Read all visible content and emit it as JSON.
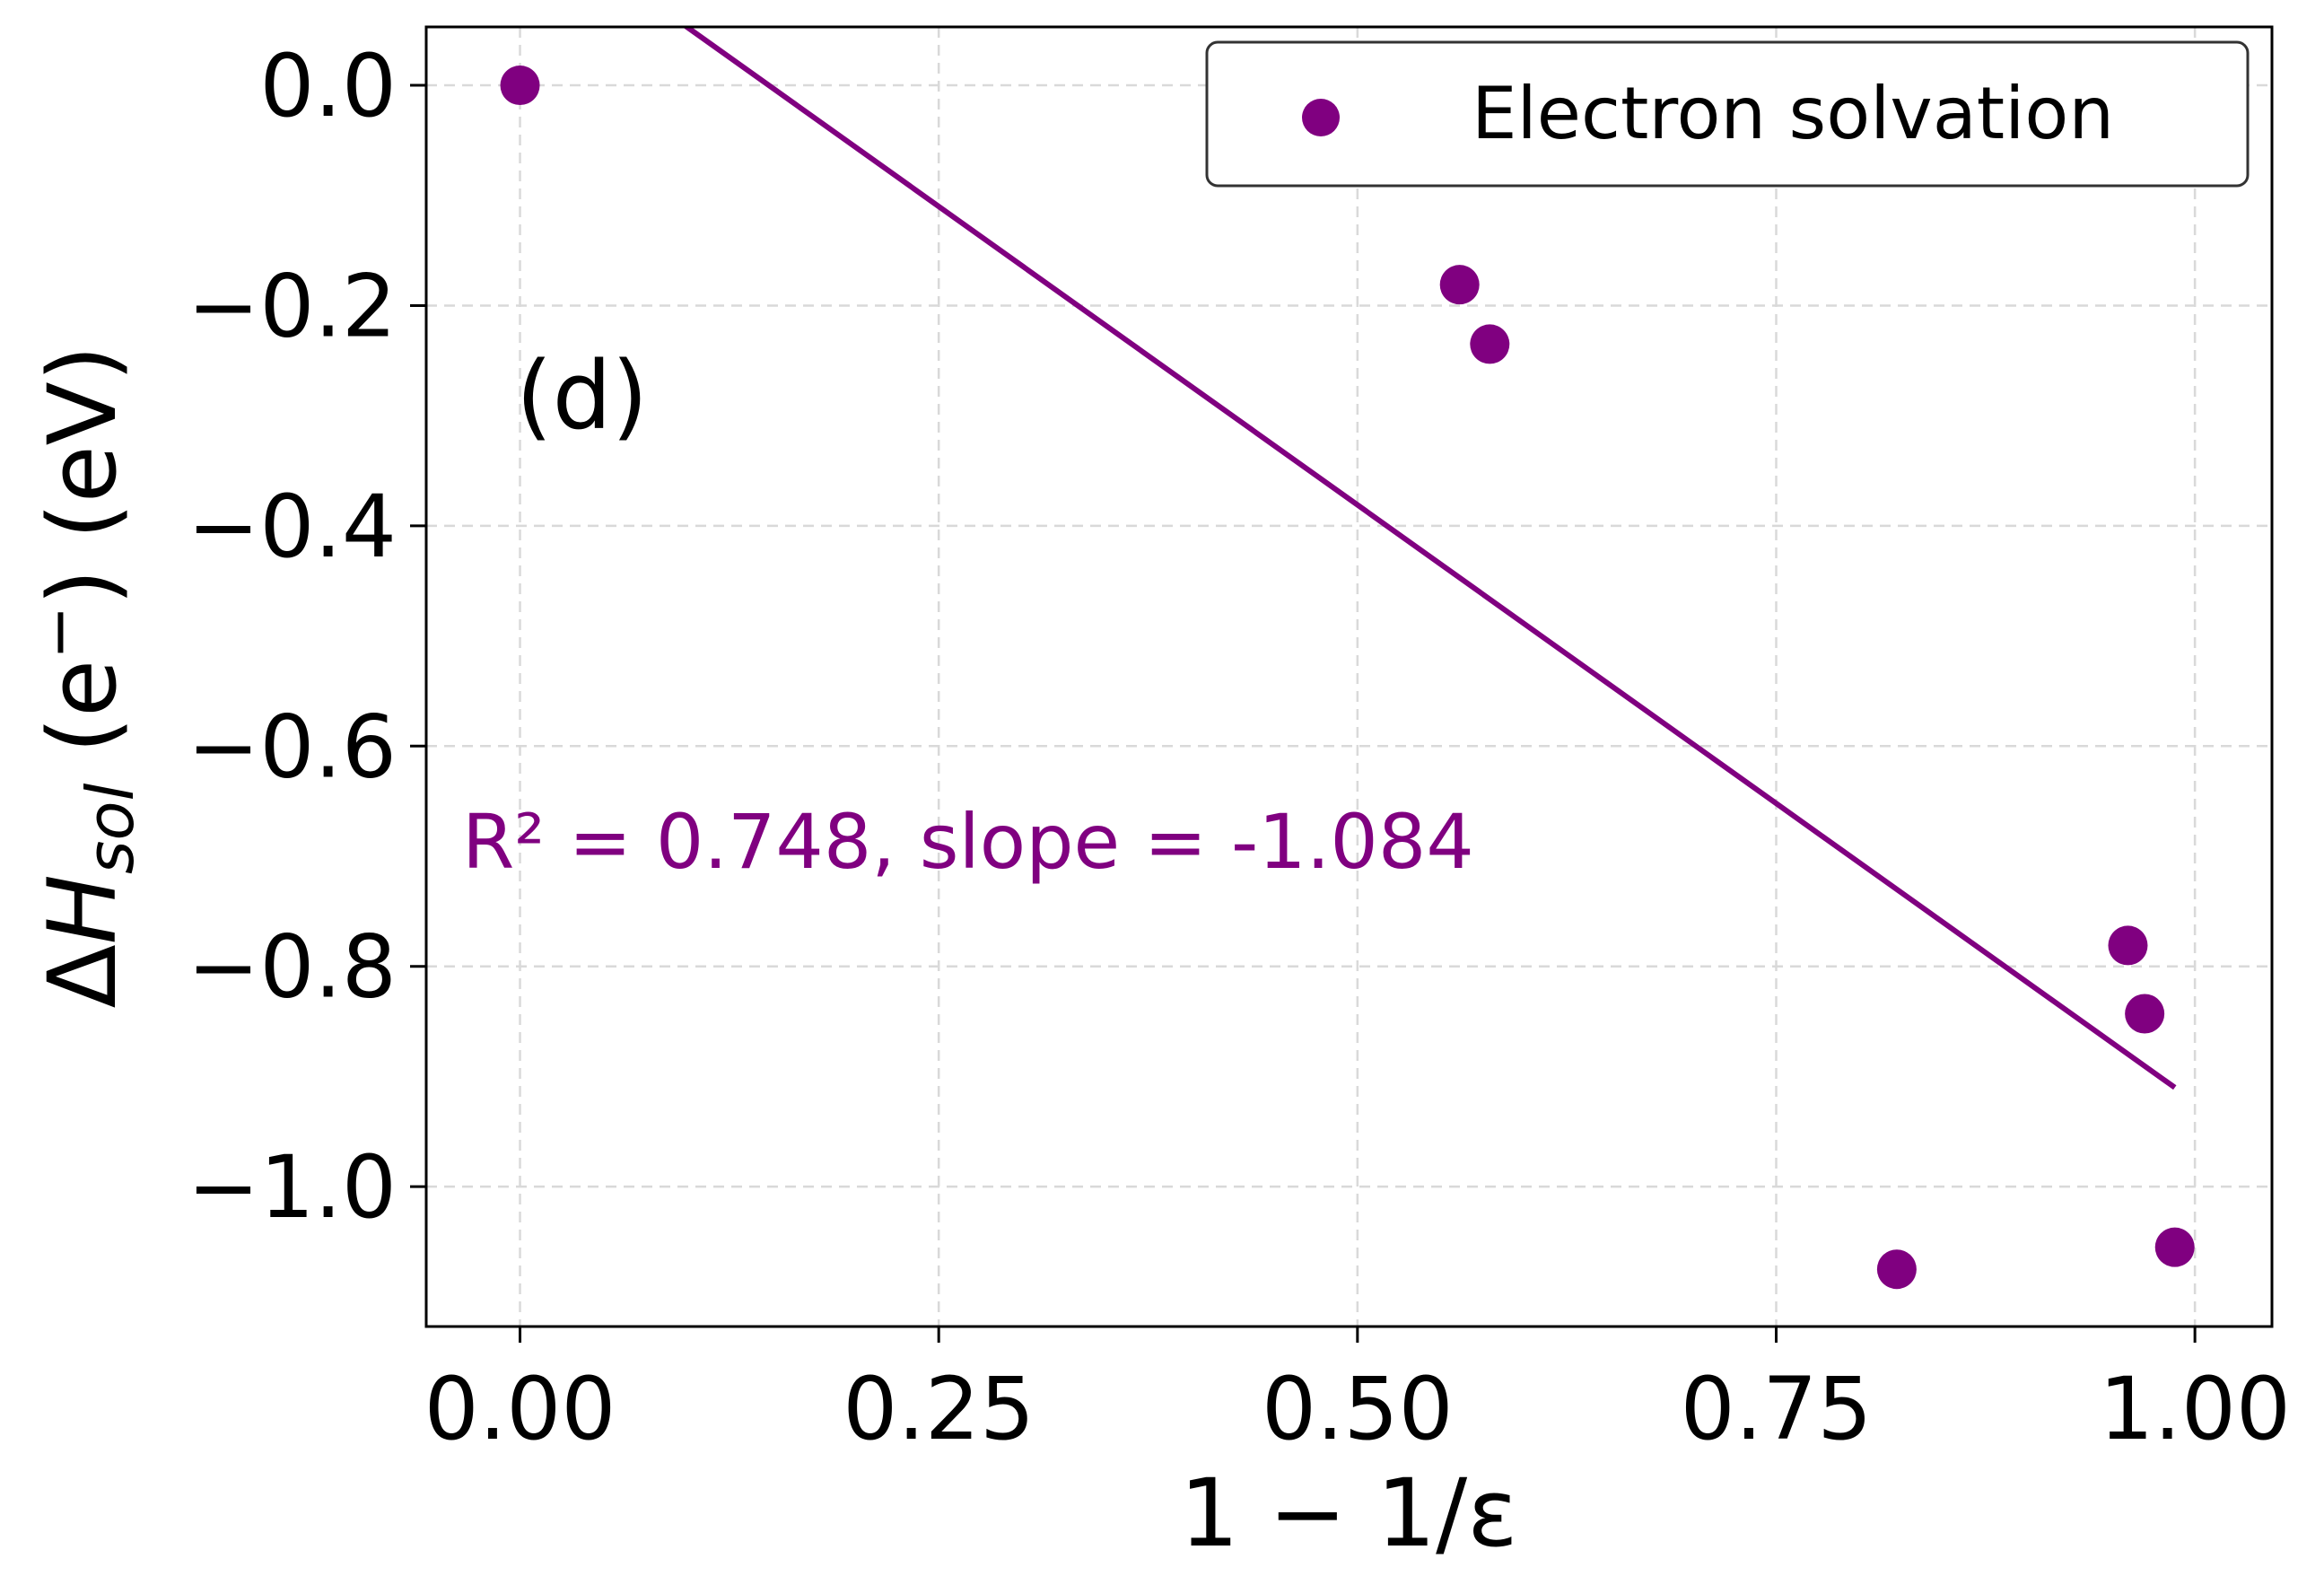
{
  "chart_data": {
    "type": "scatter",
    "title": "",
    "panel_label": "(d)",
    "xlabel": "1 − 1/ε",
    "ylabel_parts": {
      "delta": "Δ",
      "H": "H",
      "sub": "sol",
      "open": " (e",
      "sup": "−",
      "close": ") (eV)"
    },
    "xlim": [
      -0.056,
      1.046
    ],
    "ylim": [
      -1.127,
      0.053
    ],
    "xticks": [
      0.0,
      0.25,
      0.5,
      0.75,
      1.0
    ],
    "xtick_labels": [
      "0.00",
      "0.25",
      "0.50",
      "0.75",
      "1.00"
    ],
    "yticks": [
      0.0,
      -0.2,
      -0.4,
      -0.6,
      -0.8,
      -1.0
    ],
    "ytick_labels": [
      "0.0",
      "−0.2",
      "−0.4",
      "−0.6",
      "−0.8",
      "−1.0"
    ],
    "grid": true,
    "series": [
      {
        "name": "Electron solvation",
        "color": "#800080",
        "x": [
          0.0,
          0.561,
          0.579,
          0.822,
          0.96,
          0.97,
          0.988
        ],
        "y": [
          0.0,
          -0.181,
          -0.235,
          -1.075,
          -0.781,
          -0.843,
          -1.055
        ]
      }
    ],
    "fit": {
      "color": "#800080",
      "slope": -1.084,
      "intercept": 0.161,
      "x_range": [
        0.0,
        0.988
      ]
    },
    "annotation": "R² = 0.748, slope = -1.084",
    "legend": {
      "position": "top-right",
      "entries": [
        "Electron solvation"
      ]
    }
  }
}
